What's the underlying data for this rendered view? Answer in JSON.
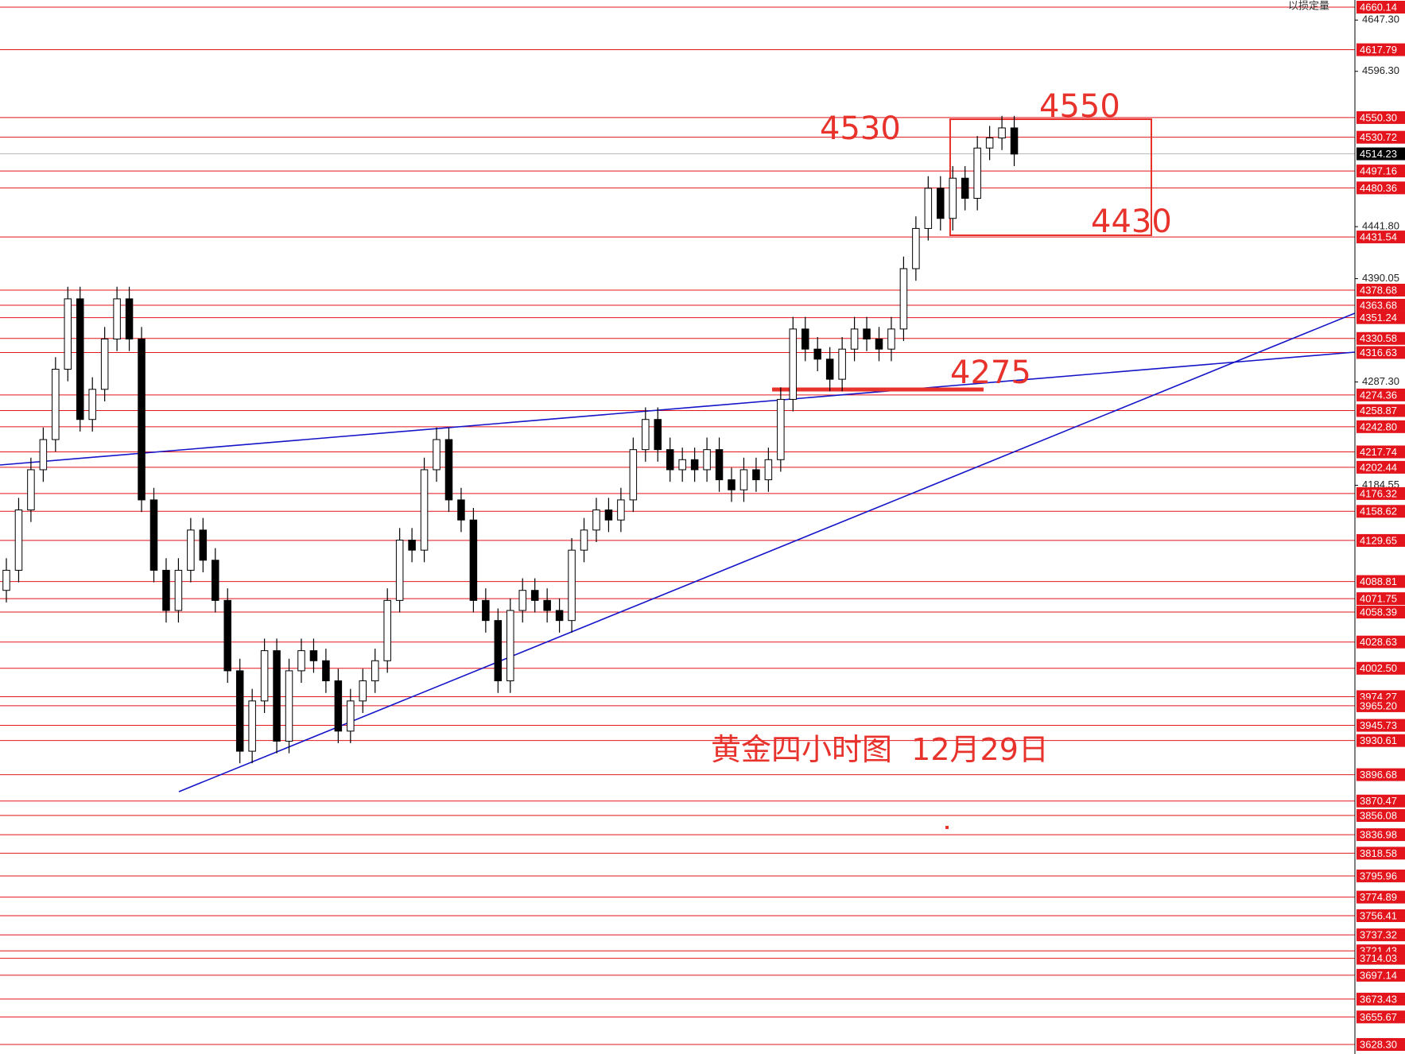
{
  "chart_data": {
    "type": "candlestick",
    "top_label": "以损定量",
    "annotations": [
      "4530",
      "4550",
      "4430",
      "4275",
      "黄金四小时图  12月29日"
    ],
    "ylim": [
      3628.3,
      4660.14
    ],
    "yticks": [
      {
        "value": 4647.3,
        "label": "4647.30"
      },
      {
        "value": 4596.3,
        "label": "4596.30"
      },
      {
        "value": 4441.8,
        "label": "4441.80"
      },
      4390.05,
      {
        "value": 4287.3,
        "label": "4287.30"
      },
      4184.55
    ],
    "levels": [
      4660.14,
      4617.79,
      {
        "value": 4550.3,
        "label": "4550.30"
      },
      4530.72,
      4497.16,
      4480.36,
      4431.54,
      4378.68,
      4363.68,
      4351.24,
      4330.58,
      4316.63,
      4274.36,
      4258.87,
      {
        "value": 4242.8,
        "label": "4242.80"
      },
      4217.74,
      4202.44,
      4176.32,
      4158.62,
      4129.65,
      4088.81,
      4071.75,
      4058.39,
      4028.63,
      {
        "value": 4002.5,
        "label": "4002.50"
      },
      3974.27,
      {
        "value": 3965.2,
        "label": "3965.20"
      },
      3945.73,
      3930.61,
      3896.68,
      3870.47,
      3856.08,
      3836.98,
      3818.58,
      3795.96,
      3774.89,
      3756.41,
      3737.32,
      3721.43,
      3714.03,
      3697.14,
      3673.43,
      3655.67,
      {
        "value": 3628.3,
        "label": "3628.30"
      }
    ],
    "level_color": "#e3141b",
    "current_price": 4514.23,
    "candle_color": "#000000",
    "open": [
      4080,
      4100,
      4160,
      4200,
      4230,
      4300,
      4370,
      4250,
      4280,
      4330,
      4370,
      4330,
      4170,
      4100,
      4060,
      4100,
      4140,
      4110,
      4070,
      4000,
      3920,
      3970,
      4020,
      3930,
      4000,
      4020,
      4010,
      3990,
      3940,
      3970,
      3990,
      4010,
      4070,
      4130,
      4120,
      4200,
      4230,
      4170,
      4150,
      4070,
      4050,
      3990,
      4060,
      4080,
      4070,
      4060,
      4050,
      4120,
      4140,
      4160,
      4150,
      4170,
      4220,
      4250,
      4220,
      4200,
      4210,
      4200,
      4220,
      4190,
      4180,
      4200,
      4190,
      4210,
      4270,
      4340,
      4320,
      4310,
      4290,
      4320,
      4340,
      4330,
      4320,
      4340,
      4400,
      4440,
      4480,
      4450,
      4490,
      4470,
      4520,
      4530,
      4540
    ],
    "high": [
      4112,
      4172,
      4212,
      4242,
      4312,
      4382,
      4382,
      4292,
      4342,
      4382,
      4382,
      4342,
      4182,
      4112,
      4112,
      4152,
      4152,
      4122,
      4082,
      4012,
      3982,
      4032,
      4032,
      4012,
      4032,
      4032,
      4022,
      4002,
      3982,
      4002,
      4022,
      4082,
      4142,
      4142,
      4212,
      4242,
      4242,
      4182,
      4162,
      4082,
      4062,
      4072,
      4092,
      4092,
      4082,
      4072,
      4132,
      4152,
      4172,
      4172,
      4182,
      4232,
      4262,
      4262,
      4232,
      4222,
      4222,
      4232,
      4232,
      4202,
      4212,
      4212,
      4222,
      4282,
      4352,
      4352,
      4332,
      4322,
      4332,
      4352,
      4352,
      4342,
      4352,
      4412,
      4452,
      4492,
      4492,
      4502,
      4502,
      4532,
      4542,
      4552,
      4552
    ],
    "low": [
      4068,
      4088,
      4148,
      4188,
      4218,
      4288,
      4238,
      4238,
      4268,
      4318,
      4318,
      4158,
      4088,
      4048,
      4048,
      4088,
      4098,
      4058,
      3988,
      3908,
      3908,
      3958,
      3918,
      3918,
      3988,
      3998,
      3978,
      3928,
      3928,
      3958,
      3978,
      3998,
      4058,
      4108,
      4108,
      4188,
      4158,
      4138,
      4058,
      4038,
      3978,
      3978,
      4048,
      4058,
      4048,
      4038,
      4038,
      4108,
      4128,
      4138,
      4138,
      4158,
      4208,
      4208,
      4188,
      4188,
      4188,
      4188,
      4178,
      4168,
      4168,
      4178,
      4178,
      4198,
      4258,
      4308,
      4298,
      4278,
      4278,
      4308,
      4318,
      4308,
      4308,
      4328,
      4388,
      4428,
      4438,
      4438,
      4458,
      4458,
      4508,
      4518,
      4502
    ],
    "close": [
      4100,
      4160,
      4200,
      4230,
      4300,
      4370,
      4250,
      4280,
      4330,
      4370,
      4330,
      4170,
      4100,
      4060,
      4100,
      4140,
      4110,
      4070,
      4000,
      3920,
      3970,
      4020,
      3930,
      4000,
      4020,
      4010,
      3990,
      3940,
      3970,
      3990,
      4010,
      4070,
      4130,
      4120,
      4200,
      4230,
      4170,
      4150,
      4070,
      4050,
      3990,
      4060,
      4080,
      4070,
      4060,
      4050,
      4120,
      4140,
      4160,
      4150,
      4170,
      4220,
      4250,
      4220,
      4200,
      4210,
      4200,
      4220,
      4190,
      4180,
      4200,
      4190,
      4210,
      4270,
      4340,
      4320,
      4310,
      4290,
      4320,
      4340,
      4330,
      4320,
      4340,
      4400,
      4440,
      4480,
      4450,
      4490,
      4470,
      4520,
      4530,
      4540,
      4514
    ]
  }
}
